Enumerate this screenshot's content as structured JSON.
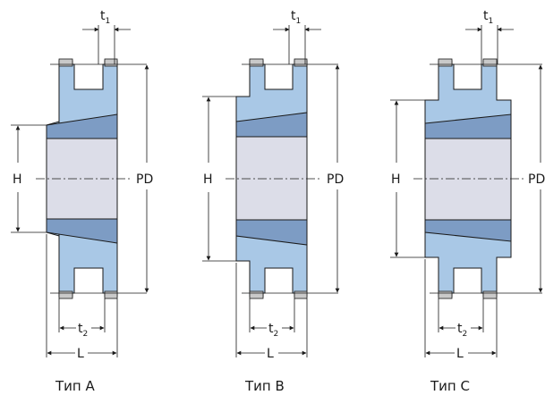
{
  "labels": {
    "t1": "t",
    "t1_sub": "1",
    "t2": "t",
    "t2_sub": "2",
    "h": "H",
    "pd": "PD",
    "l": "L"
  },
  "types": [
    {
      "caption": "Тип A"
    },
    {
      "caption": "Тип B"
    },
    {
      "caption": "Тип C"
    }
  ],
  "colors": {
    "body": "#a9c8e6",
    "hub_dark": "#7d9cc4",
    "bore": "#dcdde8",
    "tooth_tip": "#c9c9c9",
    "line": "#1a1a1a"
  }
}
